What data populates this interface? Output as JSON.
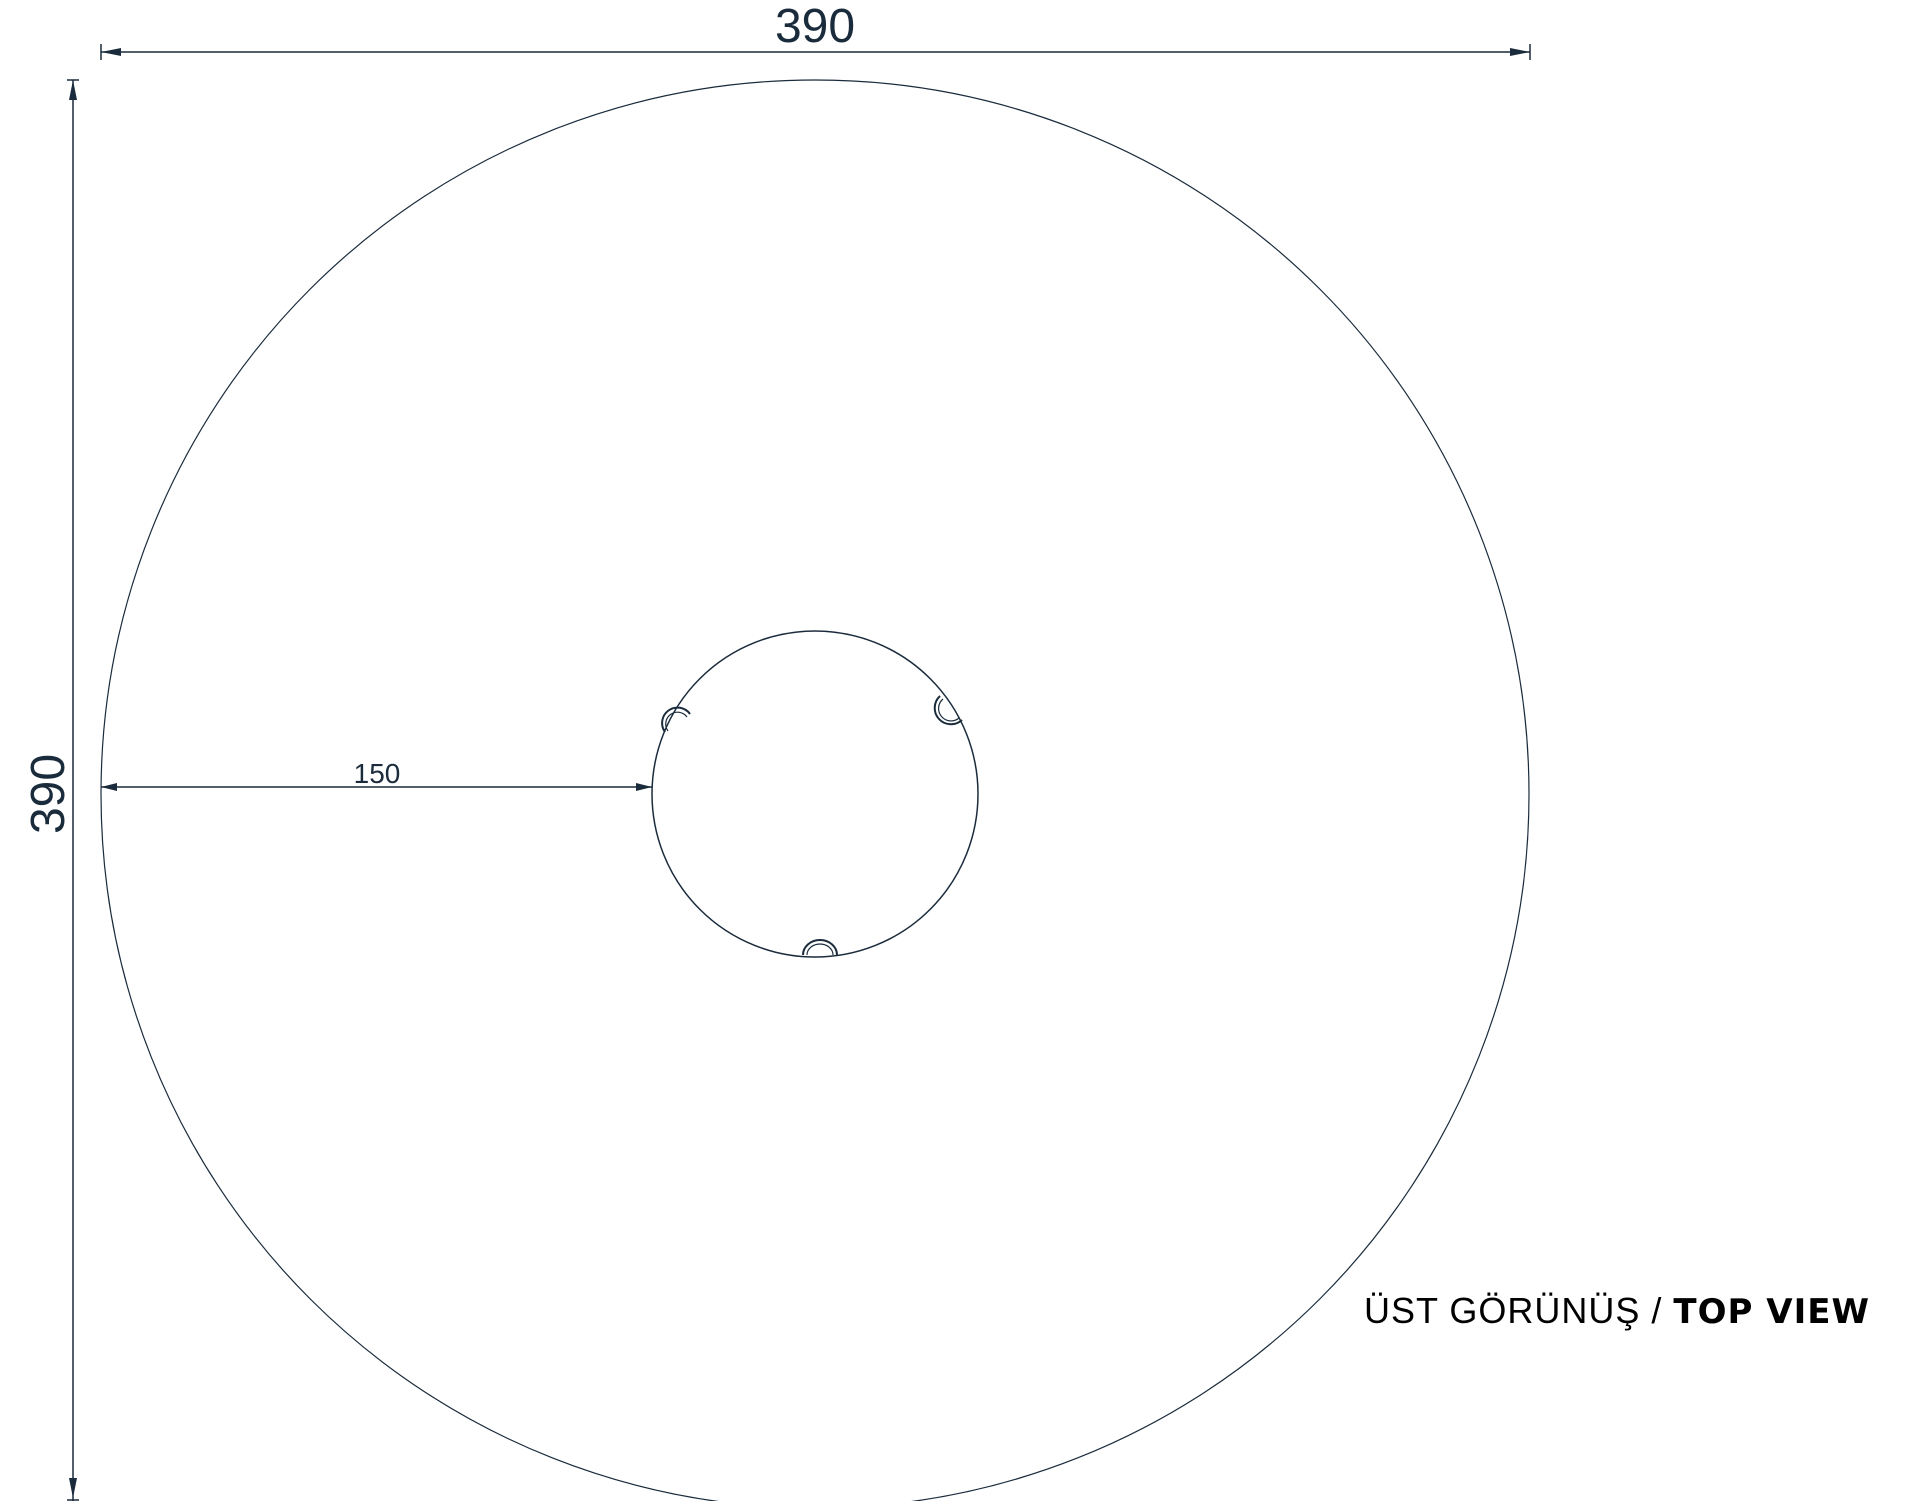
{
  "dimensions": {
    "width_label": "390",
    "height_label": "390",
    "radius_label": "150"
  },
  "caption": {
    "turkish": "ÜST GÖRÜNÜŞ",
    "separator": "/",
    "english": "TOP VIEW"
  },
  "colors": {
    "line": "#1a2b3c",
    "caption": "#000000"
  }
}
